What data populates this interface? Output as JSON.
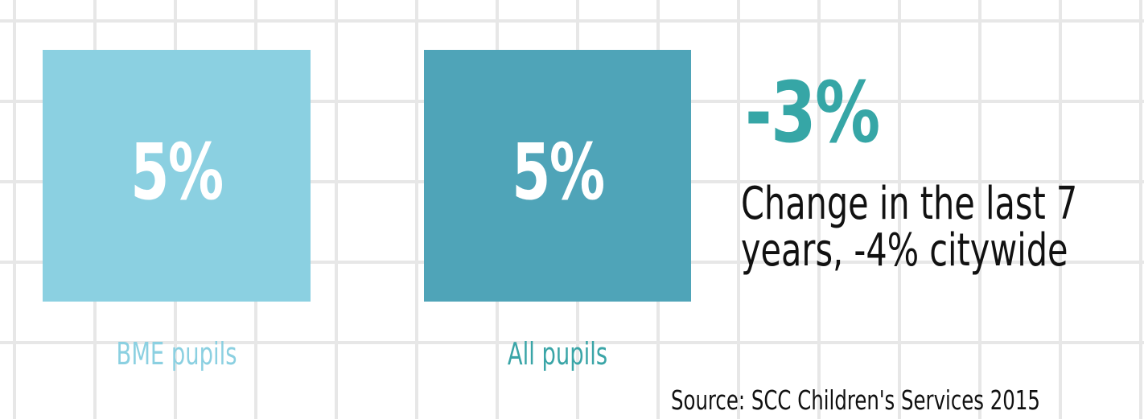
{
  "chart_data": {
    "type": "table",
    "categories": [
      "BME pupils",
      "All pupils"
    ],
    "values": [
      "5%",
      "5%"
    ],
    "series": [
      {
        "values": [
          5,
          5
        ]
      }
    ],
    "annotations": {
      "change_value": "-3%",
      "change_text_line1": "Change in the last 7",
      "change_text_line2": "years, -4% citywide"
    },
    "source": "Source: SCC Children's Services 2015"
  },
  "colors": {
    "bme_box": "#8bd0e1",
    "all_box": "#4fa4b8",
    "change_accent": "#36a6a6",
    "grid": "#e7e7e7"
  }
}
